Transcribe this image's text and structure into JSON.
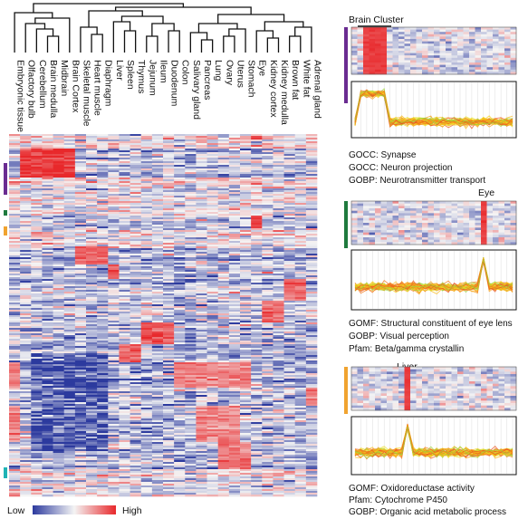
{
  "chart_data": [
    {
      "type": "heatmap",
      "tissues": [
        "Embryonic tissue",
        "Olfactory bulb",
        "Cerebellum",
        "Brain medulla",
        "Midbrain",
        "Brain Cortex",
        "Skeletal muscle",
        "Heart muscle",
        "Diaphragm",
        "Liver",
        "Spleen",
        "Thymus",
        "Jejunum",
        "Ileum",
        "Duodenum",
        "Colon",
        "Salivary gland",
        "Pancreas",
        "Lung",
        "Ovary",
        "Uterus",
        "Stomach",
        "Eye",
        "Kidney cortex",
        "Kidney medulla",
        "Brown fat",
        "White fat",
        "Adrenal gland"
      ],
      "color_scale": {
        "low_label": "Low",
        "high_label": "High",
        "low_color": "#2c3a9e",
        "mid_color": "#f4f4f4",
        "high_color": "#e8282b"
      },
      "cluster_markers": [
        {
          "color": "#6a2c91"
        },
        {
          "color": "#1f7a3e"
        },
        {
          "color": "#f0a330"
        },
        {
          "color": "#1fb3b5"
        }
      ]
    },
    {
      "type": "heatmap",
      "title": "Brain Cluster",
      "marker_color": "#6a2c91",
      "annotations": [
        "GOCC: Synapse",
        "GOCC: Neuron projection",
        "GOBP: Neurotransmitter transport"
      ]
    },
    {
      "type": "heatmap",
      "title": "Eye",
      "marker_color": "#1f7a3e",
      "annotations": [
        "GOMF: Structural constituent of eye lens",
        "GOBP: Visual perception",
        "Pfam: Beta/gamma crystallin"
      ]
    },
    {
      "type": "heatmap",
      "title": "Liver",
      "marker_color": "#f0a330",
      "annotations": [
        "GOMF: Oxidoreductase activity",
        "Pfam: Cytochrome P450",
        "GOBP: Organic acid metabolic process"
      ]
    }
  ]
}
